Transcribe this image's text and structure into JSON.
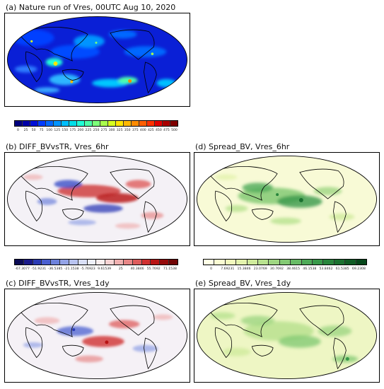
{
  "panels": {
    "a": {
      "title": "(a) Nature run of Vres, 00UTC Aug 10, 2020"
    },
    "b": {
      "title": "(b) DIFF_BVvsTR, Vres_6hr"
    },
    "c": {
      "title": "(c) DIFF_BVvsTR, Vres_1dy"
    },
    "d": {
      "title": "(d) Spread_BV, Vres_6hr"
    },
    "e": {
      "title": "(e) Spread_BV, Vres_1dy"
    }
  },
  "colorbars": {
    "nature": {
      "ticks": [
        "0",
        "25",
        "50",
        "75",
        "100",
        "125",
        "150",
        "175",
        "200",
        "225",
        "250",
        "275",
        "300",
        "325",
        "350",
        "375",
        "400",
        "425",
        "450",
        "475",
        "500"
      ],
      "colors": [
        "#00007f",
        "#0000a8",
        "#0010d6",
        "#003cff",
        "#0068ff",
        "#0094ff",
        "#00bfff",
        "#00dfe9",
        "#20ffd7",
        "#4dffaa",
        "#7dff7a",
        "#aaff4d",
        "#d7ff20",
        "#ffe500",
        "#ffb900",
        "#ff8c00",
        "#ff5f00",
        "#ff3200",
        "#e10000",
        "#aa0000",
        "#7f0000"
      ]
    },
    "diff": {
      "ticks": [
        "-67.3077",
        "-51.9231",
        "-36.5385",
        "-21.1538",
        "-5.76923",
        "9.61539",
        "25",
        "40.3846",
        "55.7692",
        "71.1538"
      ],
      "colors": [
        "#0b0b55",
        "#1a1a8a",
        "#2b3bb5",
        "#4a5fd0",
        "#6d82dc",
        "#93a3e6",
        "#b8c3ef",
        "#d9dff6",
        "#eef0f9",
        "#f9eeee",
        "#f6d3d3",
        "#efb0b0",
        "#e78787",
        "#de5c5c",
        "#d03030",
        "#b81414",
        "#950a0a",
        "#700505"
      ]
    },
    "spread": {
      "ticks": [
        "0",
        "7.69231",
        "15.3846",
        "23.0769",
        "30.7692",
        "38.4615",
        "46.1538",
        "53.8462",
        "61.5385",
        "69.2308"
      ],
      "colors": [
        "#ffffe5",
        "#fafcd2",
        "#f1f9bd",
        "#e3f3ad",
        "#cfeb9c",
        "#b8e28f",
        "#9fd682",
        "#84ca74",
        "#68bb66",
        "#4eaa58",
        "#39994a",
        "#28853c",
        "#1b7130",
        "#105c25",
        "#06471b"
      ]
    }
  }
}
